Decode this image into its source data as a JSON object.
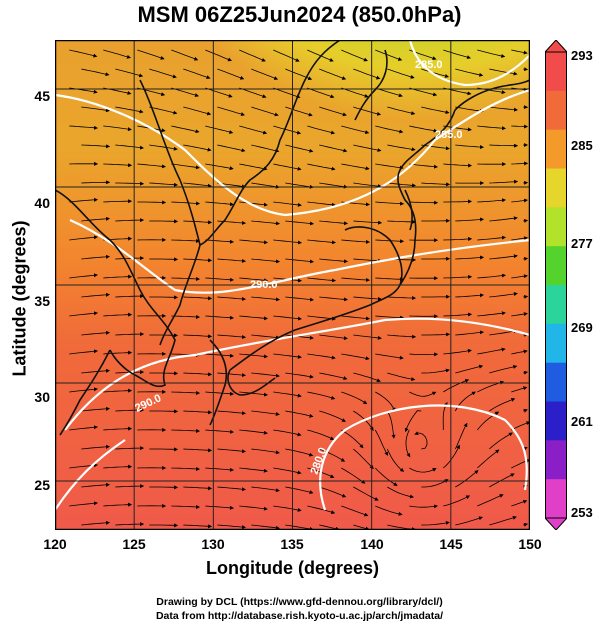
{
  "title": "MSM 06Z25Jun2024 (850.0hPa)",
  "map": {
    "xlabel": "Longitude (degrees)",
    "ylabel": "Latitude  (degrees)",
    "lon_range": [
      120,
      150
    ],
    "lat_range": [
      22.5,
      47.5
    ],
    "lon_ticks": [
      "120",
      "125",
      "130",
      "135",
      "140",
      "145",
      "150"
    ],
    "lat_ticks": [
      "45",
      "40",
      "35",
      "30",
      "25"
    ],
    "grid": true,
    "fill_colors": {
      "warm_red": "#f05a4a",
      "orange": "#f3852e",
      "yellow": "#d9d72a",
      "green": "#7fd62b"
    },
    "contour_labels": [
      "290.0",
      "285.0",
      "280.0",
      "290.0",
      "285.0"
    ],
    "streamline_color": "#000000",
    "contour_color": "#ffffff"
  },
  "colorbar": {
    "ticks": [
      "293",
      "285",
      "277",
      "269",
      "261",
      "253"
    ],
    "colors": [
      "#f24b4b",
      "#f06a3a",
      "#f39a2a",
      "#e6d52a",
      "#b3e22a",
      "#53d32b",
      "#2bd49a",
      "#22b5e8",
      "#1f5ce0",
      "#2a1fc8",
      "#8a1fc8",
      "#e040c8"
    ]
  },
  "credits": {
    "line1": "Drawing by DCL (https://www.gfd-dennou.org/library/dcl/)",
    "line2": "Data from http://database.rish.kyoto-u.ac.jp/arch/jmadata/"
  }
}
